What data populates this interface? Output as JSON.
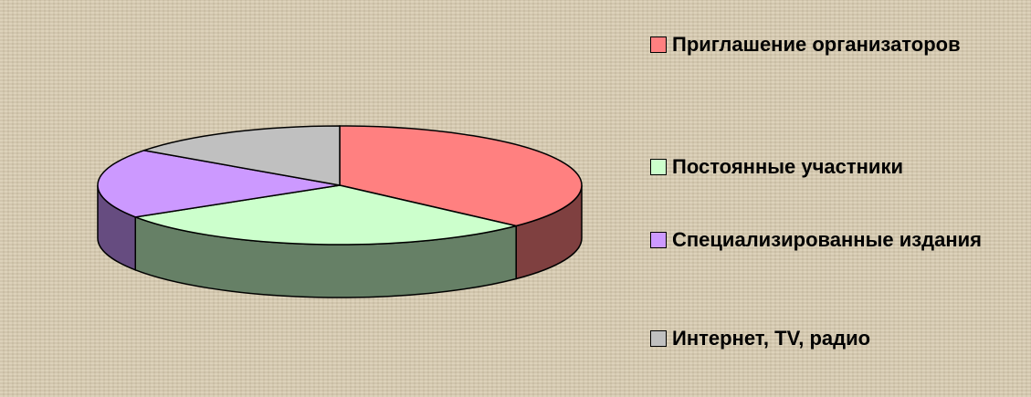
{
  "chart_data": {
    "type": "pie",
    "categories": [
      "Приглашение организаторов",
      "Постоянные участники",
      "Специализированные издания",
      "Интернет, TV, радио"
    ],
    "values": [
      37,
      29,
      19,
      15
    ],
    "colors": [
      "#ff8080",
      "#ccffcc",
      "#cc99ff",
      "#c0c0c0"
    ],
    "side_colors": [
      "#7f4040",
      "#668066",
      "#664c80",
      "#606060"
    ],
    "legend": "right"
  }
}
